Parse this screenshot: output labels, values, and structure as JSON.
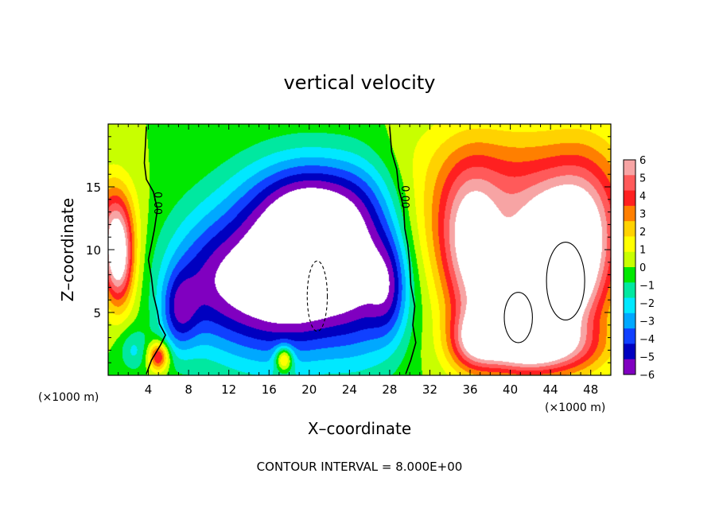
{
  "chart_data": {
    "type": "heatmap",
    "title": "vertical velocity",
    "xlabel": "X–coordinate",
    "ylabel": "Z–coordinate",
    "x_unit_left": "(×1000 m)",
    "x_unit_right": "(×1000 m)",
    "footer": "CONTOUR INTERVAL = 8.000E+00",
    "xlim": [
      0,
      50
    ],
    "ylim": [
      0,
      20
    ],
    "x_ticks": [
      4,
      8,
      12,
      16,
      20,
      24,
      28,
      32,
      36,
      40,
      44,
      48
    ],
    "x_tick_labels": [
      "4",
      "8",
      "12",
      "16",
      "20",
      "24",
      "28",
      "32",
      "36",
      "40",
      "44",
      "48"
    ],
    "y_ticks": [
      5,
      10,
      15
    ],
    "y_tick_labels": [
      "5",
      "10",
      "15"
    ],
    "colorbar": {
      "min": -6,
      "max": 6,
      "labels": [
        "6",
        "5",
        "4",
        "3",
        "2",
        "1",
        "0",
        "−1",
        "−2",
        "−3",
        "−4",
        "−5",
        "−6"
      ],
      "colors": [
        "#f7a4a4",
        "#ff5a5a",
        "#ff2020",
        "#ff7f00",
        "#ffd200",
        "#ffff00",
        "#c8ff00",
        "#00e800",
        "#00e8a0",
        "#00e8ff",
        "#00a8ff",
        "#1040ff",
        "#0000c0",
        "#8000c0"
      ]
    },
    "contour_labels": [
      "0.00",
      "0.00"
    ],
    "features": [
      {
        "x": 1.0,
        "z": 9.0,
        "sx": 1.1,
        "sz": 2.6,
        "w": 6.5
      },
      {
        "x": 0.5,
        "z": 12.5,
        "sx": 1.5,
        "sz": 2.5,
        "w": 3.5
      },
      {
        "x": 5.0,
        "z": 1.5,
        "sx": 0.7,
        "sz": 0.8,
        "w": 5
      },
      {
        "x": 2.5,
        "z": 2.0,
        "sx": 1.0,
        "sz": 1.2,
        "w": -1.8
      },
      {
        "x": 20.0,
        "z": 8.5,
        "sx": 3.6,
        "sz": 4.6,
        "w": -7.5
      },
      {
        "x": 14.5,
        "z": 7.5,
        "sx": 3.2,
        "sz": 4.5,
        "w": -4.5
      },
      {
        "x": 9.5,
        "z": 7.5,
        "sx": 3.0,
        "sz": 3.8,
        "w": -3.8
      },
      {
        "x": 25.5,
        "z": 8.5,
        "sx": 2.6,
        "sz": 5.0,
        "w": -4.2
      },
      {
        "x": 20.5,
        "z": 14.0,
        "sx": 5.0,
        "sz": 2.6,
        "w": -3.0
      },
      {
        "x": 7.0,
        "z": 5.0,
        "sx": 1.3,
        "sz": 2.3,
        "w": -3.2
      },
      {
        "x": 28.0,
        "z": 7.0,
        "sx": 1.4,
        "sz": 3.0,
        "w": -3.0
      },
      {
        "x": 17.5,
        "z": 1.3,
        "sx": 0.6,
        "sz": 0.7,
        "w": 4.5
      },
      {
        "x": 44.5,
        "z": 8.0,
        "sx": 2.8,
        "sz": 3.8,
        "w": 7.5
      },
      {
        "x": 40.5,
        "z": 5.0,
        "sx": 2.6,
        "sz": 2.8,
        "w": 7
      },
      {
        "x": 36.0,
        "z": 9.5,
        "sx": 2.2,
        "sz": 4.6,
        "w": 5
      },
      {
        "x": 41.5,
        "z": 12.5,
        "sx": 7.5,
        "sz": 3.5,
        "w": 3.6
      },
      {
        "x": 47.5,
        "z": 10.5,
        "sx": 2.5,
        "sz": 5.0,
        "w": 3.2
      },
      {
        "x": 43.0,
        "z": 2.2,
        "sx": 4.2,
        "sz": 1.5,
        "w": 4.5
      },
      {
        "x": 36.5,
        "z": 2.8,
        "sx": 1.8,
        "sz": 1.7,
        "w": 3.8
      },
      {
        "x": 40.0,
        "z": 17.0,
        "sx": 8.0,
        "sz": 3.0,
        "w": 1.5
      }
    ]
  }
}
